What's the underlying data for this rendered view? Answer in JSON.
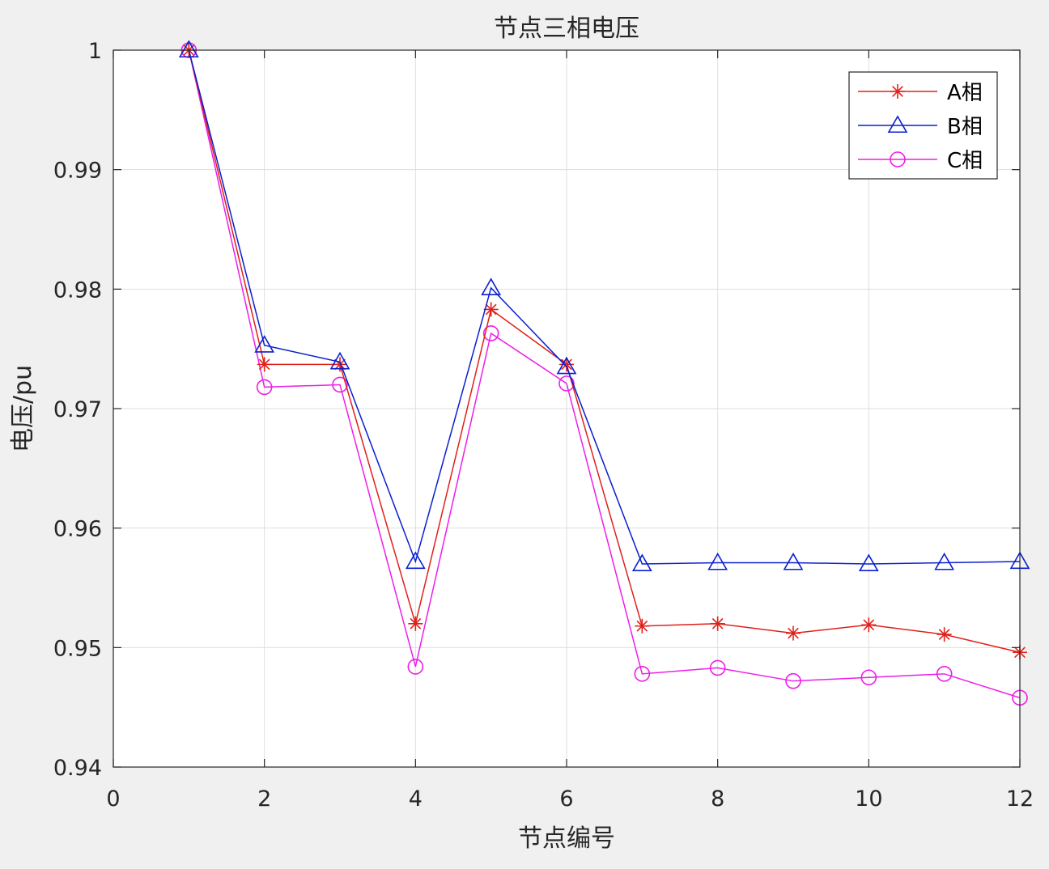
{
  "chart_data": {
    "type": "line",
    "title": "节点三相电压",
    "xlabel": "节点编号",
    "ylabel": "电压/pu",
    "xlim": [
      0,
      12
    ],
    "ylim": [
      0.94,
      1.0
    ],
    "x_ticks": [
      0,
      2,
      4,
      6,
      8,
      10,
      12
    ],
    "x_tick_labels": [
      "0",
      "2",
      "4",
      "6",
      "8",
      "10",
      "12"
    ],
    "y_ticks": [
      0.94,
      0.95,
      0.96,
      0.97,
      0.98,
      0.99,
      1.0
    ],
    "y_tick_labels": [
      "0.94",
      "0.95",
      "0.96",
      "0.97",
      "0.98",
      "0.99",
      "1"
    ],
    "grid": true,
    "legend_position": "top-right",
    "x": [
      1,
      2,
      3,
      4,
      5,
      6,
      7,
      8,
      9,
      10,
      11,
      12
    ],
    "series": [
      {
        "name": "A相",
        "color": "#e0201b",
        "marker": "asterisk",
        "values": [
          1.0,
          0.9737,
          0.9737,
          0.952,
          0.9783,
          0.9737,
          0.9518,
          0.952,
          0.9512,
          0.9519,
          0.9511,
          0.9496
        ]
      },
      {
        "name": "B相",
        "color": "#0a1ed0",
        "marker": "triangle",
        "values": [
          1.0,
          0.9753,
          0.9739,
          0.9572,
          0.9801,
          0.9735,
          0.957,
          0.9571,
          0.9571,
          0.957,
          0.9571,
          0.9572
        ]
      },
      {
        "name": "C相",
        "color": "#ee1ee8",
        "marker": "circle",
        "values": [
          1.0,
          0.9718,
          0.972,
          0.9484,
          0.9763,
          0.9721,
          0.9478,
          0.9483,
          0.9472,
          0.9475,
          0.9478,
          0.9458
        ]
      }
    ]
  }
}
